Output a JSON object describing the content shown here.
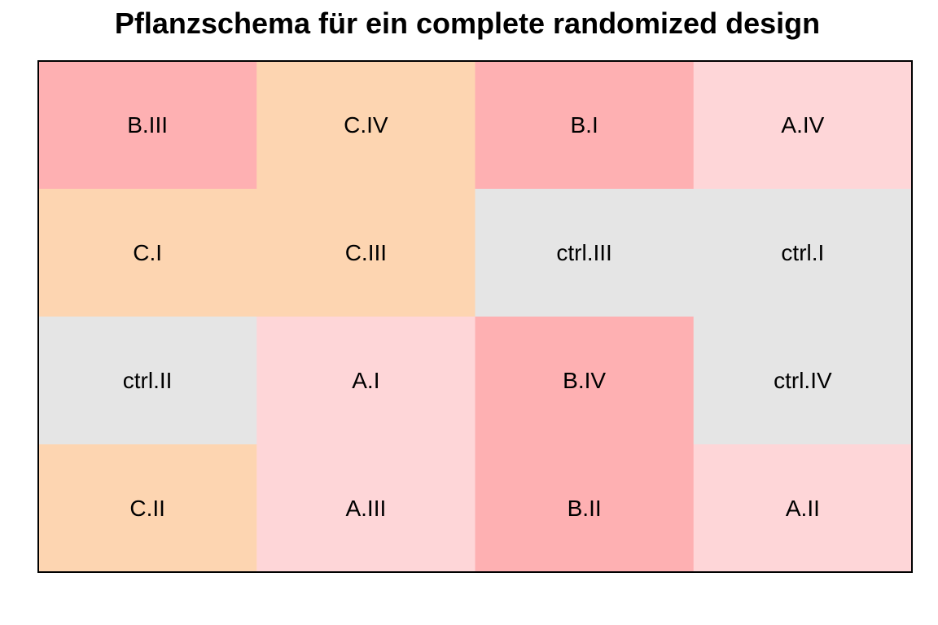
{
  "chart_data": {
    "type": "heatmap",
    "title": "Pflanzschema für ein complete randomized design",
    "nrows": 4,
    "ncols": 4,
    "group_colors": {
      "A": "#fed6d8",
      "B": "#feb0b2",
      "C": "#fdd5b1",
      "ctrl": "#e5e5e5"
    },
    "border_color": "#000000",
    "cells": [
      {
        "row": 1,
        "col": 1,
        "label": "B.III",
        "group": "B"
      },
      {
        "row": 1,
        "col": 2,
        "label": "C.IV",
        "group": "C"
      },
      {
        "row": 1,
        "col": 3,
        "label": "B.I",
        "group": "B"
      },
      {
        "row": 1,
        "col": 4,
        "label": "A.IV",
        "group": "A"
      },
      {
        "row": 2,
        "col": 1,
        "label": "C.I",
        "group": "C"
      },
      {
        "row": 2,
        "col": 2,
        "label": "C.III",
        "group": "C"
      },
      {
        "row": 2,
        "col": 3,
        "label": "ctrl.III",
        "group": "ctrl"
      },
      {
        "row": 2,
        "col": 4,
        "label": "ctrl.I",
        "group": "ctrl"
      },
      {
        "row": 3,
        "col": 1,
        "label": "ctrl.II",
        "group": "ctrl"
      },
      {
        "row": 3,
        "col": 2,
        "label": "A.I",
        "group": "A"
      },
      {
        "row": 3,
        "col": 3,
        "label": "B.IV",
        "group": "B"
      },
      {
        "row": 3,
        "col": 4,
        "label": "ctrl.IV",
        "group": "ctrl"
      },
      {
        "row": 4,
        "col": 1,
        "label": "C.II",
        "group": "C"
      },
      {
        "row": 4,
        "col": 2,
        "label": "A.III",
        "group": "A"
      },
      {
        "row": 4,
        "col": 3,
        "label": "B.II",
        "group": "B"
      },
      {
        "row": 4,
        "col": 4,
        "label": "A.II",
        "group": "A"
      }
    ]
  }
}
